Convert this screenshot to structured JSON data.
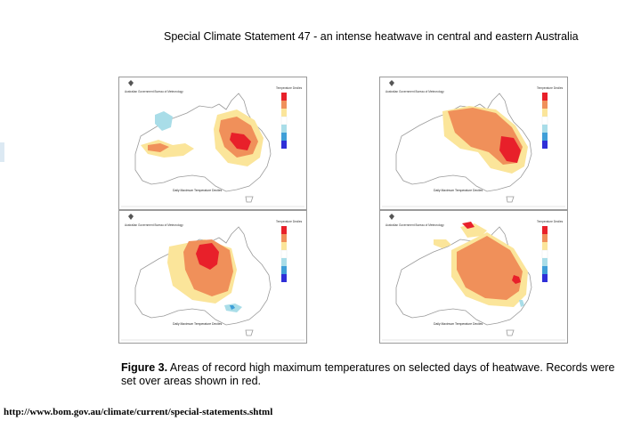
{
  "page": {
    "title": "Special Climate Statement 47 - an intense heatwave in central and eastern Australia",
    "figure_label": "Figure 3.",
    "figure_caption": "Areas of record high maximum temperatures on selected days of heatwave. Records were set over areas shown in red.",
    "source_url": "http://www.bom.gov.au/climate/current/special-statements.shtml"
  },
  "colors": {
    "highest_on_record": "#e8202a",
    "very_much_above": "#f0905a",
    "above_average": "#fbe59a",
    "average": "#ffffff",
    "below_average": "#a9dde8",
    "very_much_below": "#3f9fd8",
    "lowest_on_record": "#2f2fd8",
    "map_outline": "#9a9a9a"
  },
  "panels": [
    {
      "id": "top-left",
      "map_title": "Daily Maximum Temperature Deciles"
    },
    {
      "id": "top-right",
      "map_title": "Daily Maximum Temperature Deciles"
    },
    {
      "id": "bottom-left",
      "map_title": "Daily Maximum Temperature Deciles"
    },
    {
      "id": "bottom-right",
      "map_title": "Daily Maximum Temperature Deciles"
    }
  ],
  "legend": {
    "title": "Temperature Deciles",
    "items": [
      "Highest on Record",
      "10",
      "8-9",
      "4-7",
      "2-3",
      "1",
      "Lowest on Record"
    ]
  },
  "logo_text": "Australian Government Bureau of Meteorology"
}
